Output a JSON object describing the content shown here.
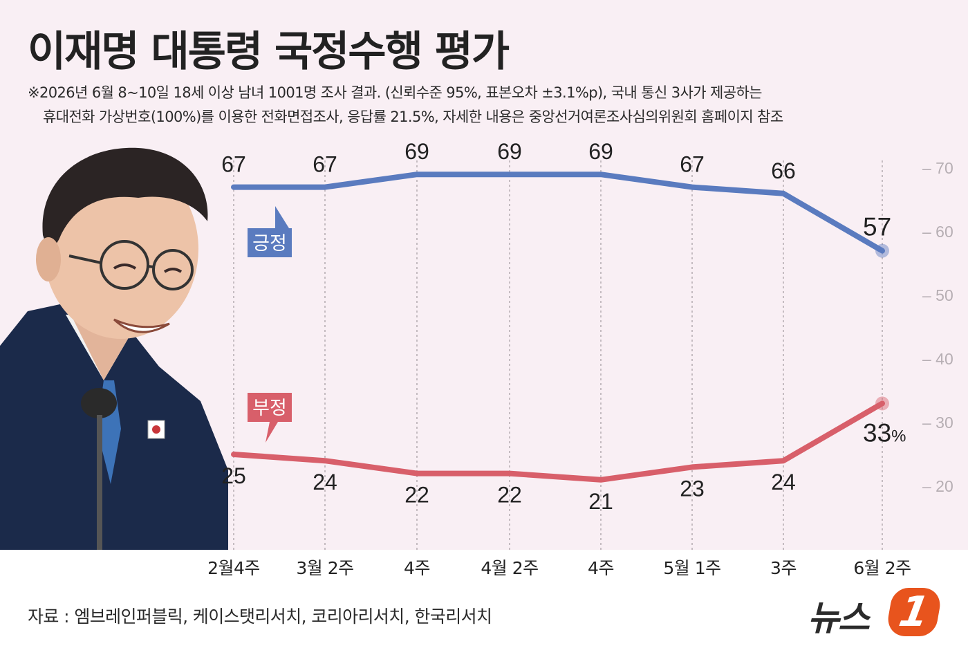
{
  "header": {
    "title": "이재명 대통령 국정수행 평가",
    "note_line1": "※2026년 6월 8~10일 18세 이상 남녀 1001명 조사 결과. (신뢰수준 95%, 표본오차 ±3.1%p), 국내 통신 3사가 제공하는",
    "note_line2": "휴대전화 가상번호(100%)를 이용한 전화면접조사, 응답률 21.5%, 자세한 내용은 중앙선거여론조사심의위원회 홈페이지 참조"
  },
  "footer": {
    "source": "자료 : 엠브레인퍼블릭, 케이스탯리서치, 코리아리서치, 한국리서치",
    "logo_text": "뉴스",
    "logo_badge": "1"
  },
  "chart_data": {
    "type": "line",
    "categories": [
      "2월4주",
      "3월 2주",
      "4주",
      "4월 2주",
      "4주",
      "5월 1주",
      "3주",
      "6월 2주"
    ],
    "series": [
      {
        "name": "긍정",
        "values": [
          67,
          67,
          69,
          69,
          69,
          67,
          66,
          57
        ],
        "color": "#5a7bbf"
      },
      {
        "name": "부정",
        "values": [
          25,
          24,
          22,
          22,
          21,
          23,
          24,
          33
        ],
        "color": "#d85f6a"
      }
    ],
    "last_value_suffix": "%",
    "yticks": [
      "70",
      "60",
      "50",
      "40",
      "30",
      "20"
    ],
    "ylim": [
      15,
      72
    ],
    "grid": "vertical dotted",
    "colors": {
      "background": "#f9eff4",
      "positive": "#5a7bbf",
      "negative": "#d85f6a"
    }
  },
  "photo": {
    "icon": "president-portrait"
  }
}
